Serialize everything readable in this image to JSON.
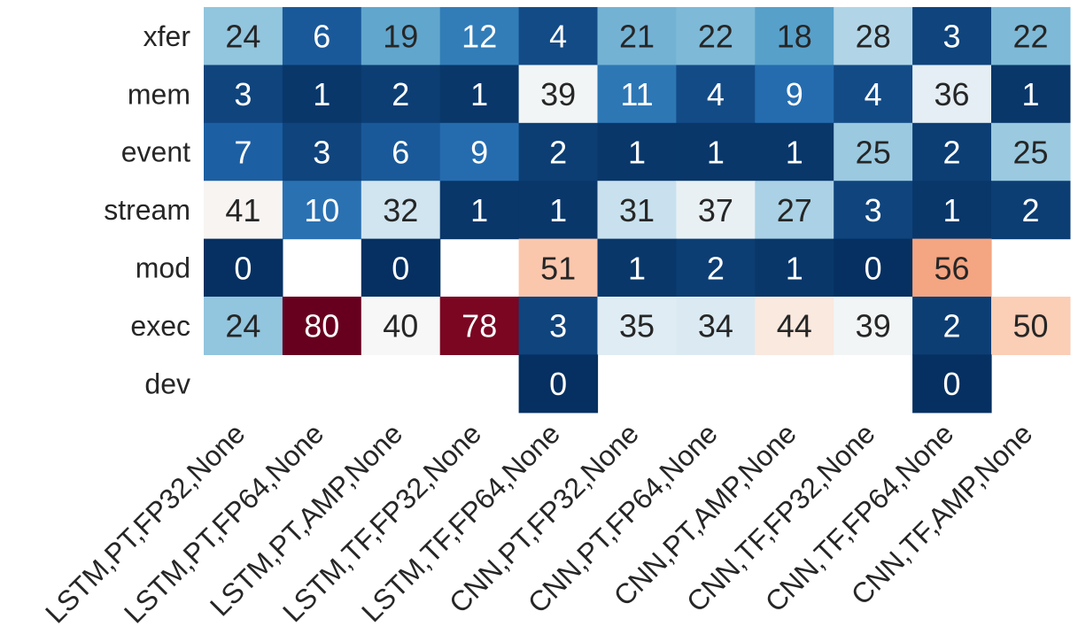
{
  "chart_data": {
    "type": "heatmap",
    "title": "",
    "xlabel": "",
    "ylabel": "",
    "rows": [
      "xfer",
      "mem",
      "event",
      "stream",
      "mod",
      "exec",
      "dev"
    ],
    "columns": [
      "LSTM,PT,FP32,None",
      "LSTM,PT,FP64,None",
      "LSTM,PT,AMP,None",
      "LSTM,TF,FP32,None",
      "LSTM,TF,FP64,None",
      "CNN,PT,FP32,None",
      "CNN,PT,FP64,None",
      "CNN,PT,AMP,None",
      "CNN,TF,FP32,None",
      "CNN,TF,FP64,None",
      "CNN,TF,AMP,None"
    ],
    "values": [
      [
        24,
        6,
        19,
        12,
        4,
        21,
        22,
        18,
        28,
        3,
        22
      ],
      [
        3,
        1,
        2,
        1,
        39,
        11,
        4,
        9,
        4,
        36,
        1
      ],
      [
        7,
        3,
        6,
        9,
        2,
        1,
        1,
        1,
        25,
        2,
        25
      ],
      [
        41,
        10,
        32,
        1,
        1,
        31,
        37,
        27,
        3,
        1,
        2
      ],
      [
        0,
        null,
        0,
        null,
        51,
        1,
        2,
        1,
        0,
        56,
        null
      ],
      [
        24,
        80,
        40,
        78,
        3,
        35,
        34,
        44,
        39,
        2,
        50
      ],
      [
        null,
        null,
        null,
        null,
        0,
        null,
        null,
        null,
        null,
        0,
        null
      ]
    ],
    "color_scale": "RdBu_r",
    "vmin": 0,
    "vmax": 80,
    "colorbar": false
  }
}
